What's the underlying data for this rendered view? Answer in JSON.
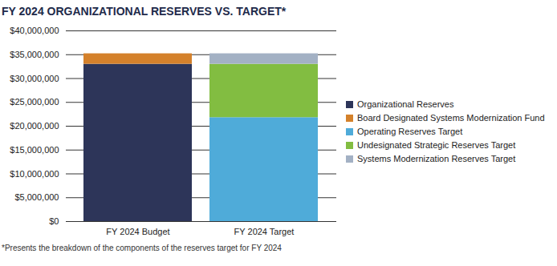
{
  "chart_data": {
    "type": "bar",
    "title": "FY 2024 ORGANIZATIONAL RESERVES VS. TARGET*",
    "caption": "*Presents the breakdown of the components of the reserves target for FY 2024",
    "categories": [
      "FY 2024 Budget",
      "FY 2024 Target"
    ],
    "series": [
      {
        "name": "Organizational Reserves",
        "color": "#2d3559",
        "values": [
          33000000,
          null
        ]
      },
      {
        "name": "Board Designated Systems Modernization Fund",
        "color": "#d4812b",
        "values": [
          2200000,
          null
        ]
      },
      {
        "name": "Operating Reserves Target",
        "color": "#4fabd9",
        "values": [
          null,
          21800000
        ]
      },
      {
        "name": "Undesignated Strategic Reserves Target",
        "color": "#82bd41",
        "values": [
          null,
          11200000
        ]
      },
      {
        "name": "Systems Modernization Reserves Target",
        "color": "#a3b1c4",
        "values": [
          null,
          2200000
        ]
      }
    ],
    "ylim": [
      0,
      40000000
    ],
    "yticks": [
      {
        "value": 0,
        "label": "$0"
      },
      {
        "value": 5000000,
        "label": "$5,000,000"
      },
      {
        "value": 10000000,
        "label": "$10,000,000"
      },
      {
        "value": 15000000,
        "label": "$15,000,000"
      },
      {
        "value": 20000000,
        "label": "$20,000,000"
      },
      {
        "value": 25000000,
        "label": "$25,000,000"
      },
      {
        "value": 30000000,
        "label": "$30,000,000"
      },
      {
        "value": 35000000,
        "label": "$35,000,000"
      },
      {
        "value": 40000000,
        "label": "$40,000,000"
      }
    ],
    "stacked": true,
    "grid": true,
    "legend": "right"
  }
}
